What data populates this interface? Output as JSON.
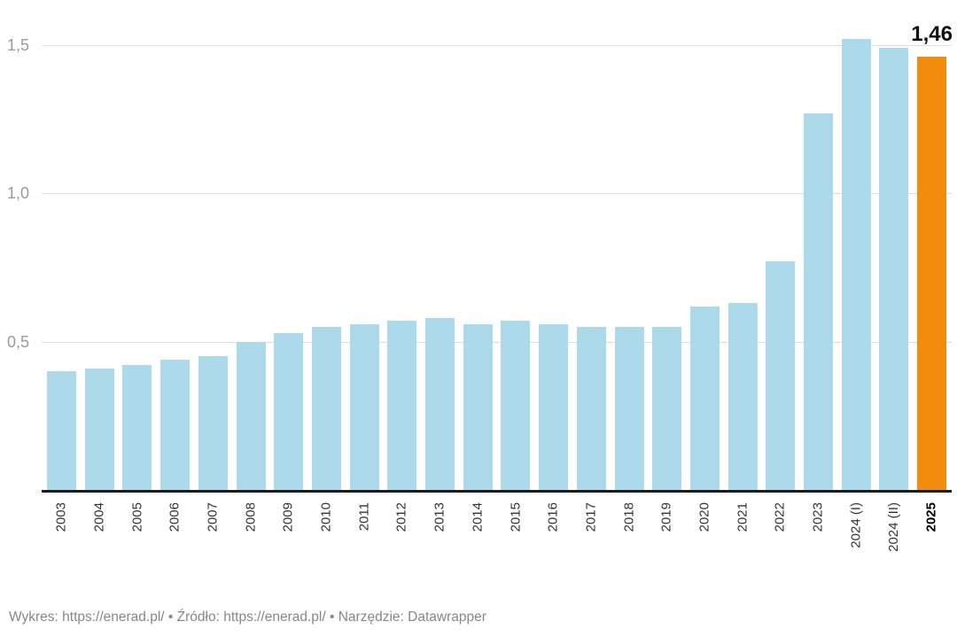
{
  "chart_data": {
    "type": "bar",
    "categories": [
      "2003",
      "2004",
      "2005",
      "2006",
      "2007",
      "2008",
      "2009",
      "2010",
      "2011",
      "2012",
      "2013",
      "2014",
      "2015",
      "2016",
      "2017",
      "2018",
      "2019",
      "2020",
      "2021",
      "2022",
      "2023",
      "2024 (I)",
      "2024 (II)",
      "2025"
    ],
    "values": [
      0.4,
      0.41,
      0.42,
      0.44,
      0.45,
      0.5,
      0.53,
      0.55,
      0.56,
      0.57,
      0.58,
      0.56,
      0.57,
      0.56,
      0.55,
      0.55,
      0.55,
      0.62,
      0.63,
      0.77,
      1.27,
      1.52,
      1.49,
      1.46
    ],
    "highlight_category": "2025",
    "highlight_value_label": "1,46",
    "bar_color": "#ACDAEB",
    "highlight_color": "#F28C0D",
    "ylim": [
      0,
      1.56
    ],
    "yticks": [
      {
        "label": "0,5",
        "value": 0.5
      },
      {
        "label": "1,0",
        "value": 1.0
      },
      {
        "label": "1,5",
        "value": 1.5
      }
    ],
    "grid": "horizontal",
    "legend": "none",
    "x_tick_rotation": -90
  },
  "footer": {
    "text": "Wykres: https://enerad.pl/ • Źródło: https://enerad.pl/ • Narzędzie: Datawrapper",
    "parts": [
      {
        "label": "Wykres: ",
        "link": false
      },
      {
        "label": "https://enerad.pl/",
        "link": true
      },
      {
        "label": " • ",
        "link": false
      },
      {
        "label": "Źródło: ",
        "link": false
      },
      {
        "label": "https://enerad.pl/",
        "link": true
      },
      {
        "label": " • ",
        "link": false
      },
      {
        "label": "Narzędzie: ",
        "link": false
      },
      {
        "label": "Datawrapper",
        "link": true
      }
    ]
  }
}
